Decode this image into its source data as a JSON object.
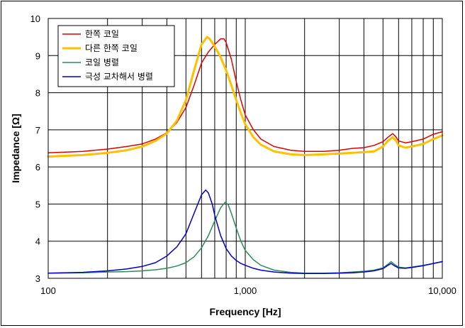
{
  "chart_data": {
    "type": "line",
    "title": "",
    "xlabel": "Frequency [Hz]",
    "ylabel": "Impedance [Ω]",
    "xscale": "log",
    "xlim": [
      100,
      10000
    ],
    "ylim": [
      3,
      10
    ],
    "xticks": [
      {
        "value": 100,
        "label": "100"
      },
      {
        "value": 1000,
        "label": "1,000"
      },
      {
        "value": 10000,
        "label": "10,000"
      }
    ],
    "yticks": [
      {
        "value": 3,
        "label": "3"
      },
      {
        "value": 4,
        "label": "4"
      },
      {
        "value": 5,
        "label": "5"
      },
      {
        "value": 6,
        "label": "6"
      },
      {
        "value": 7,
        "label": "7"
      },
      {
        "value": 8,
        "label": "8"
      },
      {
        "value": 9,
        "label": "9"
      },
      {
        "value": 10,
        "label": "10"
      }
    ],
    "grid": true,
    "legend_position": "top-left",
    "series": [
      {
        "name": "한쪽 코일",
        "color": "#e00000",
        "width": 1.5,
        "x": [
          100,
          150,
          200,
          250,
          300,
          350,
          400,
          450,
          500,
          550,
          600,
          650,
          700,
          750,
          780,
          800,
          850,
          900,
          950,
          1000,
          1100,
          1200,
          1400,
          1700,
          2000,
          2500,
          3000,
          3500,
          4000,
          4500,
          5000,
          5300,
          5600,
          5800,
          6000,
          6500,
          7000,
          8000,
          9000,
          10000
        ],
        "y": [
          6.38,
          6.42,
          6.48,
          6.55,
          6.62,
          6.75,
          6.92,
          7.2,
          7.6,
          8.2,
          8.8,
          9.1,
          9.3,
          9.45,
          9.45,
          9.35,
          8.9,
          8.3,
          7.8,
          7.4,
          7.0,
          6.75,
          6.55,
          6.45,
          6.42,
          6.42,
          6.45,
          6.5,
          6.52,
          6.58,
          6.68,
          6.8,
          6.9,
          6.82,
          6.7,
          6.65,
          6.68,
          6.75,
          6.88,
          6.95
        ]
      },
      {
        "name": "다른 한쪽 코일",
        "color": "#ffc000",
        "width": 3,
        "x": [
          100,
          150,
          200,
          250,
          300,
          350,
          400,
          450,
          500,
          550,
          600,
          640,
          660,
          700,
          750,
          800,
          850,
          900,
          950,
          1000,
          1100,
          1200,
          1400,
          1700,
          2000,
          2500,
          3000,
          3500,
          4000,
          4500,
          5000,
          5300,
          5600,
          5800,
          6000,
          6500,
          7000,
          8000,
          9000,
          10000
        ],
        "y": [
          6.28,
          6.32,
          6.38,
          6.45,
          6.55,
          6.7,
          6.9,
          7.25,
          7.8,
          8.6,
          9.3,
          9.5,
          9.45,
          9.25,
          8.95,
          8.6,
          8.2,
          7.8,
          7.45,
          7.15,
          6.8,
          6.6,
          6.42,
          6.34,
          6.32,
          6.34,
          6.36,
          6.38,
          6.4,
          6.42,
          6.55,
          6.7,
          6.8,
          6.72,
          6.58,
          6.52,
          6.55,
          6.62,
          6.75,
          6.85
        ]
      },
      {
        "name": "코일 병렬",
        "color": "#2e8b57",
        "width": 1.5,
        "x": [
          100,
          150,
          200,
          250,
          300,
          350,
          400,
          450,
          500,
          550,
          600,
          650,
          700,
          750,
          790,
          820,
          850,
          900,
          950,
          1000,
          1100,
          1200,
          1400,
          1700,
          2000,
          2500,
          3000,
          3500,
          4000,
          4500,
          5000,
          5300,
          5500,
          5700,
          6000,
          6500,
          7000,
          8000,
          9000,
          10000
        ],
        "y": [
          3.14,
          3.15,
          3.17,
          3.18,
          3.2,
          3.23,
          3.27,
          3.33,
          3.42,
          3.58,
          3.82,
          4.15,
          4.55,
          4.9,
          5.05,
          4.98,
          4.75,
          4.35,
          4.0,
          3.75,
          3.5,
          3.35,
          3.22,
          3.16,
          3.14,
          3.14,
          3.15,
          3.17,
          3.19,
          3.22,
          3.28,
          3.38,
          3.45,
          3.38,
          3.3,
          3.28,
          3.3,
          3.35,
          3.4,
          3.45
        ]
      },
      {
        "name": "극성 교차해서 병렬",
        "color": "#0000c8",
        "width": 1.5,
        "x": [
          100,
          150,
          200,
          250,
          300,
          350,
          400,
          450,
          500,
          550,
          600,
          630,
          650,
          680,
          700,
          750,
          800,
          850,
          900,
          950,
          1000,
          1100,
          1200,
          1400,
          1700,
          2000,
          2500,
          3000,
          3500,
          4000,
          4500,
          5000,
          5300,
          5500,
          5700,
          6000,
          6500,
          7000,
          8000,
          9000,
          10000
        ],
        "y": [
          3.14,
          3.16,
          3.2,
          3.25,
          3.32,
          3.42,
          3.6,
          3.85,
          4.2,
          4.75,
          5.25,
          5.38,
          5.3,
          5.0,
          4.7,
          4.15,
          3.8,
          3.6,
          3.48,
          3.4,
          3.35,
          3.27,
          3.22,
          3.17,
          3.14,
          3.13,
          3.13,
          3.14,
          3.15,
          3.17,
          3.2,
          3.26,
          3.35,
          3.4,
          3.34,
          3.28,
          3.27,
          3.29,
          3.34,
          3.4,
          3.45
        ]
      }
    ]
  }
}
